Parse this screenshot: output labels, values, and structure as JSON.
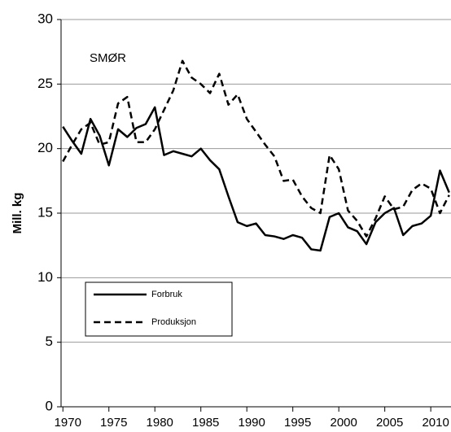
{
  "chart_data": {
    "type": "line",
    "annotation": "SMØR",
    "ylabel": "Mill. kg",
    "x": [
      1970,
      1971,
      1972,
      1973,
      1974,
      1975,
      1976,
      1977,
      1978,
      1979,
      1980,
      1981,
      1982,
      1983,
      1984,
      1985,
      1986,
      1987,
      1988,
      1989,
      1990,
      1991,
      1992,
      1993,
      1994,
      1995,
      1996,
      1997,
      1998,
      1999,
      2000,
      2001,
      2002,
      2003,
      2004,
      2005,
      2006,
      2007,
      2008,
      2009,
      2010,
      2011,
      2012
    ],
    "series": [
      {
        "name": "Forbruk",
        "color": "#000000",
        "dash": false,
        "values": [
          21.7,
          20.6,
          19.6,
          22.3,
          21.0,
          18.7,
          21.5,
          20.9,
          21.6,
          21.9,
          23.2,
          19.5,
          19.8,
          19.6,
          19.4,
          20.0,
          19.1,
          18.4,
          16.3,
          14.3,
          14.0,
          14.2,
          13.3,
          13.2,
          13.0,
          13.3,
          13.1,
          12.2,
          12.1,
          14.7,
          15.0,
          13.9,
          13.6,
          12.6,
          14.3,
          15.0,
          15.4,
          13.3,
          14.0,
          14.2,
          14.8,
          18.3,
          16.6
        ]
      },
      {
        "name": "Produksjon",
        "color": "#000000",
        "dash": true,
        "values": [
          19.0,
          20.3,
          21.5,
          22.0,
          20.3,
          20.5,
          23.5,
          24.0,
          20.5,
          20.5,
          21.5,
          23.0,
          24.5,
          26.8,
          25.5,
          25.0,
          24.3,
          25.8,
          23.4,
          24.2,
          22.3,
          21.3,
          20.3,
          19.4,
          17.5,
          17.6,
          16.3,
          15.4,
          15.0,
          19.5,
          18.4,
          15.2,
          14.4,
          13.2,
          14.6,
          16.3,
          15.3,
          15.5,
          16.8,
          17.3,
          16.9,
          15.0,
          16.4
        ]
      }
    ],
    "xlim": [
      1969.8,
      2012.2
    ],
    "xticks": [
      1970,
      1975,
      1980,
      1985,
      1990,
      1995,
      2000,
      2005,
      2010
    ],
    "ylim": [
      0,
      30
    ],
    "yticks": [
      0,
      5,
      10,
      15,
      20,
      25,
      30
    ],
    "grid": true
  }
}
